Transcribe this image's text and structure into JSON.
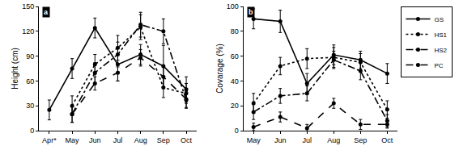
{
  "chart_data": [
    {
      "type": "line",
      "annotations": [
        "a"
      ],
      "y_label": "Height (cm)",
      "categories": [
        "Apr*",
        "May",
        "Jun",
        "Jul",
        "Aug",
        "Sep",
        "Oct"
      ],
      "ylim": [
        0,
        150
      ],
      "yticks": [
        0,
        30,
        60,
        90,
        120,
        150
      ],
      "grid": false,
      "series": [
        {
          "name": "GS",
          "color": "#000000",
          "marker": "circle",
          "line_style": "solid",
          "values": [
            25,
            75,
            124,
            80,
            92,
            78,
            50
          ],
          "errors": [
            12,
            12,
            12,
            20,
            12,
            25,
            15
          ]
        },
        {
          "name": "HS1",
          "color": "#000000",
          "marker": "circle",
          "line_style": "dot",
          "values": [
            null,
            30,
            80,
            100,
            125,
            52,
            45
          ],
          "errors": [
            null,
            12,
            12,
            15,
            15,
            12,
            12
          ]
        },
        {
          "name": "HS2",
          "color": "#000000",
          "marker": "circle",
          "line_style": "dashdot",
          "values": [
            null,
            20,
            70,
            92,
            128,
            120,
            37
          ],
          "errors": [
            null,
            10,
            12,
            15,
            15,
            15,
            10
          ]
        },
        {
          "name": "PC",
          "color": "#000000",
          "marker": "circle",
          "line_style": "dash",
          "values": [
            null,
            20,
            57,
            70,
            88,
            65,
            38
          ],
          "errors": [
            null,
            10,
            8,
            10,
            10,
            12,
            10
          ]
        }
      ]
    },
    {
      "type": "line",
      "annotations": [
        "b"
      ],
      "y_label": "Covarage (%)",
      "categories": [
        "May",
        "Jun",
        "Jul",
        "Aug",
        "Sep",
        "Oct"
      ],
      "ylim": [
        0,
        100
      ],
      "yticks": [
        0,
        20,
        40,
        60,
        80,
        100
      ],
      "grid": false,
      "legend": "right",
      "series": [
        {
          "name": "GS",
          "color": "#000000",
          "marker": "circle",
          "line_style": "solid",
          "values": [
            90,
            88,
            38,
            61,
            57,
            46
          ],
          "errors": [
            8,
            9,
            8,
            8,
            7,
            8
          ]
        },
        {
          "name": "HS1",
          "color": "#000000",
          "marker": "circle",
          "line_style": "dot",
          "values": [
            22,
            52,
            58,
            59,
            55,
            17
          ],
          "errors": [
            8,
            7,
            8,
            8,
            7,
            7
          ]
        },
        {
          "name": "HS2",
          "color": "#000000",
          "marker": "circle",
          "line_style": "dashdot",
          "values": [
            15,
            28,
            30,
            57,
            48,
            8
          ],
          "errors": [
            6,
            6,
            6,
            7,
            7,
            5
          ]
        },
        {
          "name": "PC",
          "color": "#000000",
          "marker": "circle",
          "line_style": "dash",
          "values": [
            3,
            11,
            2,
            22,
            5,
            5
          ],
          "errors": [
            3,
            4,
            3,
            4,
            4,
            3
          ]
        }
      ]
    }
  ]
}
